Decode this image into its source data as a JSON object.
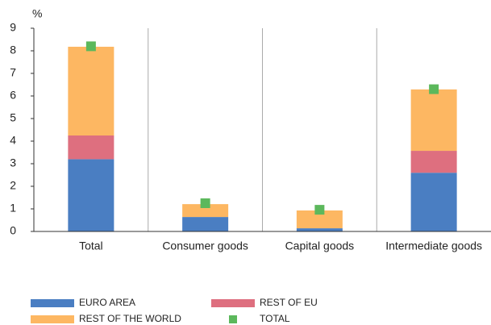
{
  "chart_data": {
    "type": "stacked_bar",
    "y_label": "%",
    "categories": [
      "Total",
      "Consumer goods",
      "Capital goods",
      "Intermediate goods"
    ],
    "series": [
      {
        "name": "EURO AREA",
        "color": "#4a7ec2",
        "values": [
          3.2,
          0.64,
          0.14,
          2.6
        ]
      },
      {
        "name": "REST OF EU",
        "color": "#de6f7f",
        "values": [
          1.05,
          0,
          0,
          0.97
        ]
      },
      {
        "name": "REST OF THE WORLD",
        "color": "#fdb762",
        "values": [
          3.93,
          0.57,
          0.79,
          2.72
        ]
      }
    ],
    "total": {
      "name": "TOTAL",
      "color": "#5cb85c",
      "values": [
        8.2,
        1.25,
        0.96,
        6.3
      ]
    },
    "ylim": [
      0,
      9
    ],
    "yticks": [
      0,
      1,
      2,
      3,
      4,
      5,
      6,
      7,
      8,
      9
    ]
  }
}
